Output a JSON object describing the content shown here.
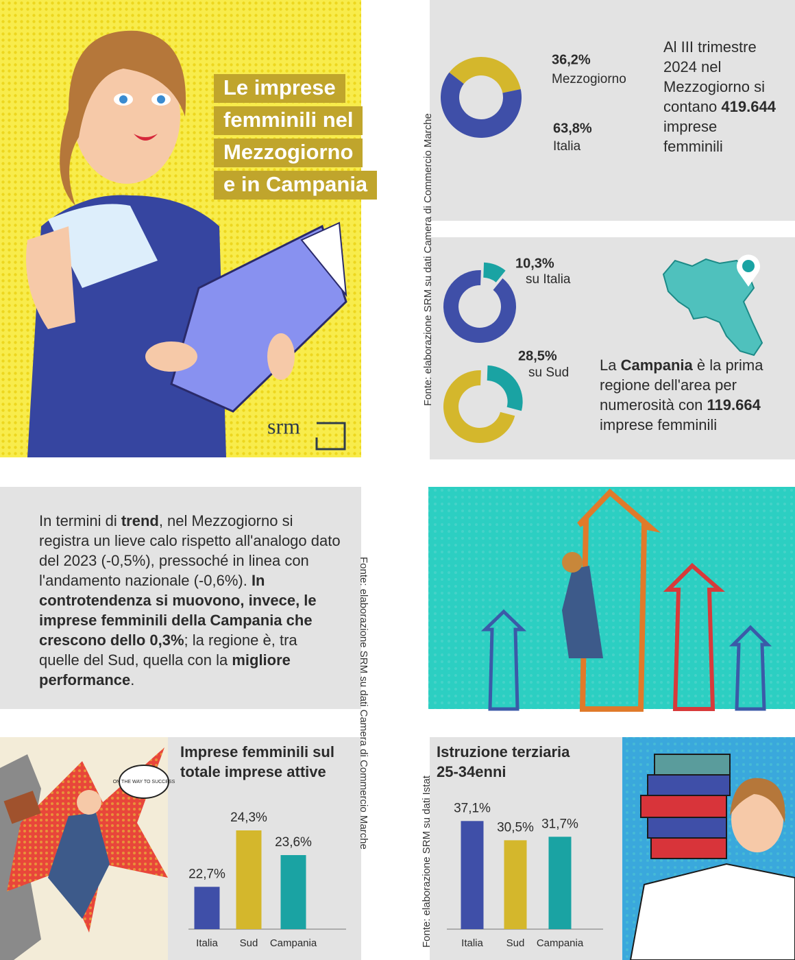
{
  "header": {
    "title_lines": [
      "Le imprese",
      "femminili nel",
      "Mezzogiorno",
      "e in Campania"
    ],
    "logo": "srm"
  },
  "source_top": "Fonte: elaborazione SRM su dati Camera di Commercio Marche",
  "source_middle": "Fonte: elaborazione SRM su dati Camera di Commercio Marche",
  "source_bottom": "Fonte: elaborazione SRM su dati Istat",
  "stat_mezzogiorno": [
    {
      "text": "Al III trimestre 2024 nel Mezzogiorno si contano ",
      "bold": false
    },
    {
      "text": "419.644",
      "bold": true
    },
    {
      "text": " imprese femminili",
      "bold": false
    }
  ],
  "stat_campania": [
    {
      "text": "La ",
      "bold": false
    },
    {
      "text": "Campania",
      "bold": true
    },
    {
      "text": " è la prima regione dell'area per numerosità con ",
      "bold": false
    },
    {
      "text": "119.664",
      "bold": true
    },
    {
      "text": " imprese femminili",
      "bold": false
    }
  ],
  "trend_text": [
    {
      "text": "In termini di ",
      "bold": false
    },
    {
      "text": "trend",
      "bold": true
    },
    {
      "text": ", nel Mezzogiorno si registra un lieve calo rispetto all'analogo dato del 2023 (-0,5%), pressoché in linea con l'andamento nazionale (-0,6%). ",
      "bold": false
    },
    {
      "text": "In controtendenza si muovono, invece, le imprese femminili della Campania che crescono dello 0,3%",
      "bold": true
    },
    {
      "text": "; la regione è, tra quelle del Sud, quella con la ",
      "bold": false
    },
    {
      "text": "migliore performance",
      "bold": true
    },
    {
      "text": ".",
      "bold": false
    }
  ],
  "comic_bubble": "ON THE WAY TO SUCCESS",
  "chart_data": [
    {
      "type": "donut",
      "categories": [
        "Mezzogiorno",
        "Italia"
      ],
      "values": [
        36.2,
        63.8
      ],
      "value_labels": [
        "36,2%",
        "63,8%"
      ],
      "colors": [
        "#d4b72c",
        "#3f4fa8"
      ]
    },
    {
      "type": "donut",
      "categories": [
        "su Italia",
        null
      ],
      "values": [
        10.3,
        89.7
      ],
      "value_labels": [
        "10,3%",
        null
      ],
      "colors": [
        "#1aa3a3",
        "#3f4fa8"
      ]
    },
    {
      "type": "donut",
      "categories": [
        "su Sud",
        null
      ],
      "values": [
        28.5,
        71.5
      ],
      "value_labels": [
        "28,5%",
        null
      ],
      "colors": [
        "#1aa3a3",
        "#d4b72c"
      ]
    },
    {
      "type": "bar",
      "title": "Imprese femminili sul totale imprese attive",
      "categories": [
        "Italia",
        "Sud",
        "Campania"
      ],
      "values": [
        22.7,
        24.3,
        23.6
      ],
      "value_labels": [
        "22,7%",
        "24,3%",
        "23,6%"
      ],
      "colors": [
        "#3f4fa8",
        "#d4b72c",
        "#1aa3a3"
      ],
      "ylim": [
        21.5,
        25
      ]
    },
    {
      "type": "bar",
      "title": "Istruzione terziaria 25-34enni",
      "categories": [
        "Italia",
        "Sud",
        "Campania"
      ],
      "values": [
        37.1,
        30.5,
        31.7
      ],
      "value_labels": [
        "37,1%",
        "30,5%",
        "31,7%"
      ],
      "colors": [
        "#3f4fa8",
        "#d4b72c",
        "#1aa3a3"
      ],
      "ylim": [
        0,
        40
      ]
    }
  ]
}
